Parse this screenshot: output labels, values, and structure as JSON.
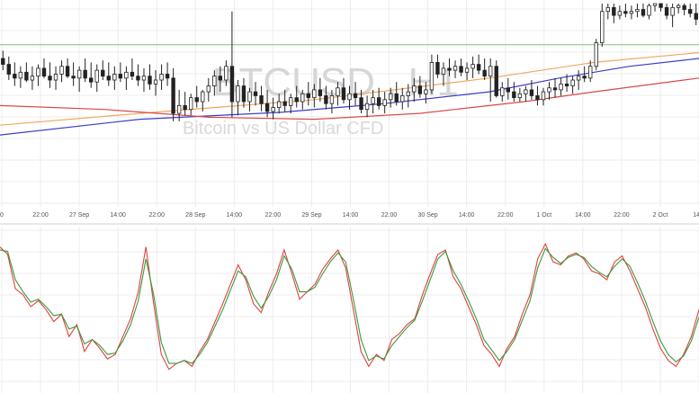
{
  "watermark": {
    "title": "BTCUSD , H1",
    "subtitle": "Bitcoin vs US Dollar CFD"
  },
  "colors": {
    "background": "#ffffff",
    "grid": "#ececec",
    "candle": "#222222",
    "horizontal_line": "#7cc46a",
    "ma_blue": "#3c3cc8",
    "ma_orange": "#f0a860",
    "ma_red": "#d84848",
    "stoch_red": "#e04040",
    "stoch_green": "#3a9a3a"
  },
  "chart_data": [
    {
      "type": "candlestick",
      "title": "BTCUSD , H1",
      "subtitle": "Bitcoin vs US Dollar CFD",
      "x_tick_labels": [
        "0",
        "22:00",
        "27 Sep",
        "14:00",
        "22:00",
        "28 Sep",
        "14:00",
        "22:00",
        "29 Sep",
        "14:00",
        "22:00",
        "30 Sep",
        "14:00",
        "22:00",
        "1 Oct",
        "14:00",
        "22:00",
        "2 Oct",
        "14:0"
      ],
      "grid": true,
      "price_range": [
        0,
        100
      ],
      "support_level": 79,
      "candles": [
        [
          72,
          76,
          66,
          69
        ],
        [
          69,
          73,
          61,
          64
        ],
        [
          64,
          70,
          58,
          62
        ],
        [
          62,
          68,
          57,
          65
        ],
        [
          65,
          70,
          60,
          61
        ],
        [
          61,
          68,
          56,
          63
        ],
        [
          63,
          69,
          58,
          67
        ],
        [
          67,
          72,
          62,
          63
        ],
        [
          63,
          70,
          57,
          61
        ],
        [
          61,
          68,
          56,
          64
        ],
        [
          64,
          71,
          60,
          68
        ],
        [
          68,
          72,
          62,
          63
        ],
        [
          63,
          70,
          58,
          62
        ],
        [
          62,
          68,
          55,
          66
        ],
        [
          66,
          72,
          60,
          62
        ],
        [
          62,
          70,
          57,
          60
        ],
        [
          60,
          69,
          55,
          66
        ],
        [
          66,
          71,
          61,
          63
        ],
        [
          63,
          70,
          58,
          61
        ],
        [
          61,
          68,
          56,
          64
        ],
        [
          64,
          70,
          60,
          62
        ],
        [
          62,
          68,
          56,
          65
        ],
        [
          65,
          72,
          61,
          63
        ],
        [
          63,
          69,
          58,
          61
        ],
        [
          61,
          67,
          55,
          63
        ],
        [
          63,
          69,
          56,
          59
        ],
        [
          59,
          66,
          53,
          61
        ],
        [
          61,
          69,
          56,
          64
        ],
        [
          64,
          70,
          58,
          62
        ],
        [
          62,
          67,
          40,
          44
        ],
        [
          44,
          56,
          40,
          48
        ],
        [
          48,
          55,
          43,
          46
        ],
        [
          46,
          54,
          43,
          52
        ],
        [
          52,
          58,
          47,
          50
        ],
        [
          50,
          56,
          45,
          55
        ],
        [
          55,
          62,
          50,
          58
        ],
        [
          58,
          66,
          53,
          63
        ],
        [
          63,
          68,
          55,
          61
        ],
        [
          61,
          71,
          58,
          68
        ],
        [
          68,
          96,
          42,
          50
        ],
        [
          50,
          61,
          43,
          58
        ],
        [
          58,
          62,
          47,
          50
        ],
        [
          50,
          57,
          45,
          55
        ],
        [
          55,
          60,
          48,
          53
        ],
        [
          53,
          58,
          45,
          49
        ],
        [
          49,
          56,
          42,
          45
        ],
        [
          45,
          52,
          41,
          47
        ],
        [
          47,
          54,
          44,
          50
        ],
        [
          50,
          56,
          45,
          48
        ],
        [
          48,
          54,
          44,
          52
        ],
        [
          52,
          58,
          47,
          50
        ],
        [
          50,
          56,
          46,
          54
        ],
        [
          54,
          60,
          48,
          52
        ],
        [
          52,
          59,
          47,
          56
        ],
        [
          56,
          62,
          50,
          53
        ],
        [
          53,
          58,
          46,
          49
        ],
        [
          49,
          56,
          44,
          53
        ],
        [
          53,
          60,
          48,
          57
        ],
        [
          57,
          62,
          49,
          51
        ],
        [
          51,
          58,
          46,
          54
        ],
        [
          54,
          60,
          48,
          52
        ],
        [
          52,
          56,
          44,
          46
        ],
        [
          46,
          53,
          42,
          49
        ],
        [
          49,
          56,
          44,
          52
        ],
        [
          52,
          57,
          46,
          48
        ],
        [
          48,
          55,
          44,
          51
        ],
        [
          51,
          57,
          47,
          54
        ],
        [
          54,
          60,
          48,
          50
        ],
        [
          50,
          57,
          46,
          53
        ],
        [
          53,
          59,
          47,
          55
        ],
        [
          55,
          62,
          50,
          58
        ],
        [
          58,
          63,
          52,
          54
        ],
        [
          54,
          60,
          49,
          56
        ],
        [
          56,
          74,
          54,
          70
        ],
        [
          70,
          74,
          62,
          64
        ],
        [
          64,
          70,
          58,
          67
        ],
        [
          67,
          72,
          63,
          66
        ],
        [
          66,
          71,
          62,
          68
        ],
        [
          68,
          72,
          63,
          65
        ],
        [
          65,
          70,
          61,
          67
        ],
        [
          67,
          73,
          62,
          69
        ],
        [
          69,
          74,
          64,
          66
        ],
        [
          66,
          72,
          61,
          63
        ],
        [
          63,
          72,
          50,
          68
        ],
        [
          68,
          71,
          52,
          53
        ],
        [
          53,
          60,
          50,
          57
        ],
        [
          57,
          62,
          51,
          55
        ],
        [
          55,
          60,
          50,
          52
        ],
        [
          52,
          57,
          50,
          54
        ],
        [
          54,
          58,
          50,
          56
        ],
        [
          56,
          61,
          51,
          53
        ],
        [
          53,
          58,
          48,
          51
        ],
        [
          51,
          57,
          48,
          55
        ],
        [
          55,
          60,
          51,
          57
        ],
        [
          57,
          62,
          52,
          56
        ],
        [
          56,
          62,
          53,
          59
        ],
        [
          59,
          64,
          55,
          58
        ],
        [
          58,
          63,
          54,
          61
        ],
        [
          61,
          66,
          56,
          63
        ],
        [
          63,
          68,
          60,
          62
        ],
        [
          62,
          71,
          60,
          68
        ],
        [
          68,
          82,
          66,
          80
        ],
        [
          80,
          100,
          78,
          96
        ],
        [
          96,
          100,
          92,
          98
        ],
        [
          98,
          100,
          90,
          94
        ],
        [
          94,
          99,
          92,
          96
        ],
        [
          96,
          100,
          93,
          95
        ],
        [
          95,
          99,
          92,
          96
        ],
        [
          96,
          100,
          93,
          97
        ],
        [
          97,
          100,
          93,
          94
        ],
        [
          94,
          100,
          92,
          99
        ],
        [
          99,
          100,
          96,
          100
        ],
        [
          100,
          100,
          96,
          98
        ],
        [
          98,
          100,
          92,
          94
        ],
        [
          94,
          100,
          88,
          98
        ],
        [
          98,
          100,
          95,
          99
        ],
        [
          99,
          100,
          94,
          97
        ],
        [
          97,
          100,
          93,
          95
        ],
        [
          95,
          100,
          89,
          92
        ]
      ],
      "moving_averages": [
        {
          "color": "blue",
          "points": [
            [
              0,
              33
            ],
            [
              20,
              41
            ],
            [
              40,
              44.5
            ],
            [
              55,
              49
            ],
            [
              70,
              55
            ],
            [
              80,
              62
            ],
            [
              90,
              68
            ],
            [
              100,
              72
            ]
          ]
        },
        {
          "color": "orange",
          "points": [
            [
              0,
              38
            ],
            [
              20,
              44
            ],
            [
              45,
              51
            ],
            [
              70,
              62
            ],
            [
              85,
              70
            ],
            [
              100,
              75
            ]
          ]
        },
        {
          "color": "red",
          "points": [
            [
              0,
              48
            ],
            [
              15,
              46
            ],
            [
              30,
              42
            ],
            [
              45,
              41
            ],
            [
              60,
              44
            ],
            [
              75,
              50
            ],
            [
              85,
              55
            ],
            [
              100,
              62
            ]
          ]
        }
      ]
    },
    {
      "type": "line",
      "indicator": "stochastic",
      "y_range": [
        0,
        100
      ],
      "series": [
        {
          "color": "red",
          "values": [
            90,
            85,
            62,
            58,
            50,
            54,
            48,
            40,
            45,
            30,
            38,
            20,
            28,
            22,
            15,
            18,
            30,
            42,
            60,
            90,
            52,
            18,
            8,
            12,
            14,
            10,
            20,
            28,
            40,
            52,
            65,
            78,
            68,
            52,
            46,
            60,
            72,
            88,
            72,
            55,
            60,
            65,
            75,
            82,
            88,
            76,
            48,
            20,
            10,
            18,
            14,
            28,
            32,
            38,
            42,
            58,
            72,
            85,
            88,
            70,
            62,
            50,
            38,
            24,
            18,
            10,
            22,
            30,
            45,
            58,
            82,
            92,
            80,
            78,
            84,
            86,
            82,
            74,
            72,
            68,
            80,
            84,
            74,
            62,
            50,
            35,
            22,
            14,
            10,
            18,
            30,
            48
          ]
        },
        {
          "color": "green",
          "values": [
            88,
            87,
            68,
            60,
            53,
            55,
            50,
            44,
            45,
            35,
            37,
            25,
            28,
            24,
            18,
            19,
            27,
            38,
            54,
            82,
            58,
            26,
            12,
            12,
            14,
            12,
            18,
            26,
            37,
            48,
            61,
            74,
            70,
            57,
            49,
            57,
            68,
            84,
            75,
            60,
            60,
            63,
            72,
            80,
            86,
            80,
            55,
            28,
            14,
            17,
            15,
            24,
            30,
            36,
            41,
            54,
            68,
            82,
            87,
            74,
            65,
            54,
            42,
            28,
            21,
            14,
            20,
            28,
            41,
            54,
            76,
            89,
            83,
            79,
            83,
            85,
            83,
            77,
            73,
            70,
            77,
            82,
            77,
            66,
            54,
            40,
            27,
            18,
            13,
            17,
            27,
            43
          ]
        }
      ]
    }
  ]
}
